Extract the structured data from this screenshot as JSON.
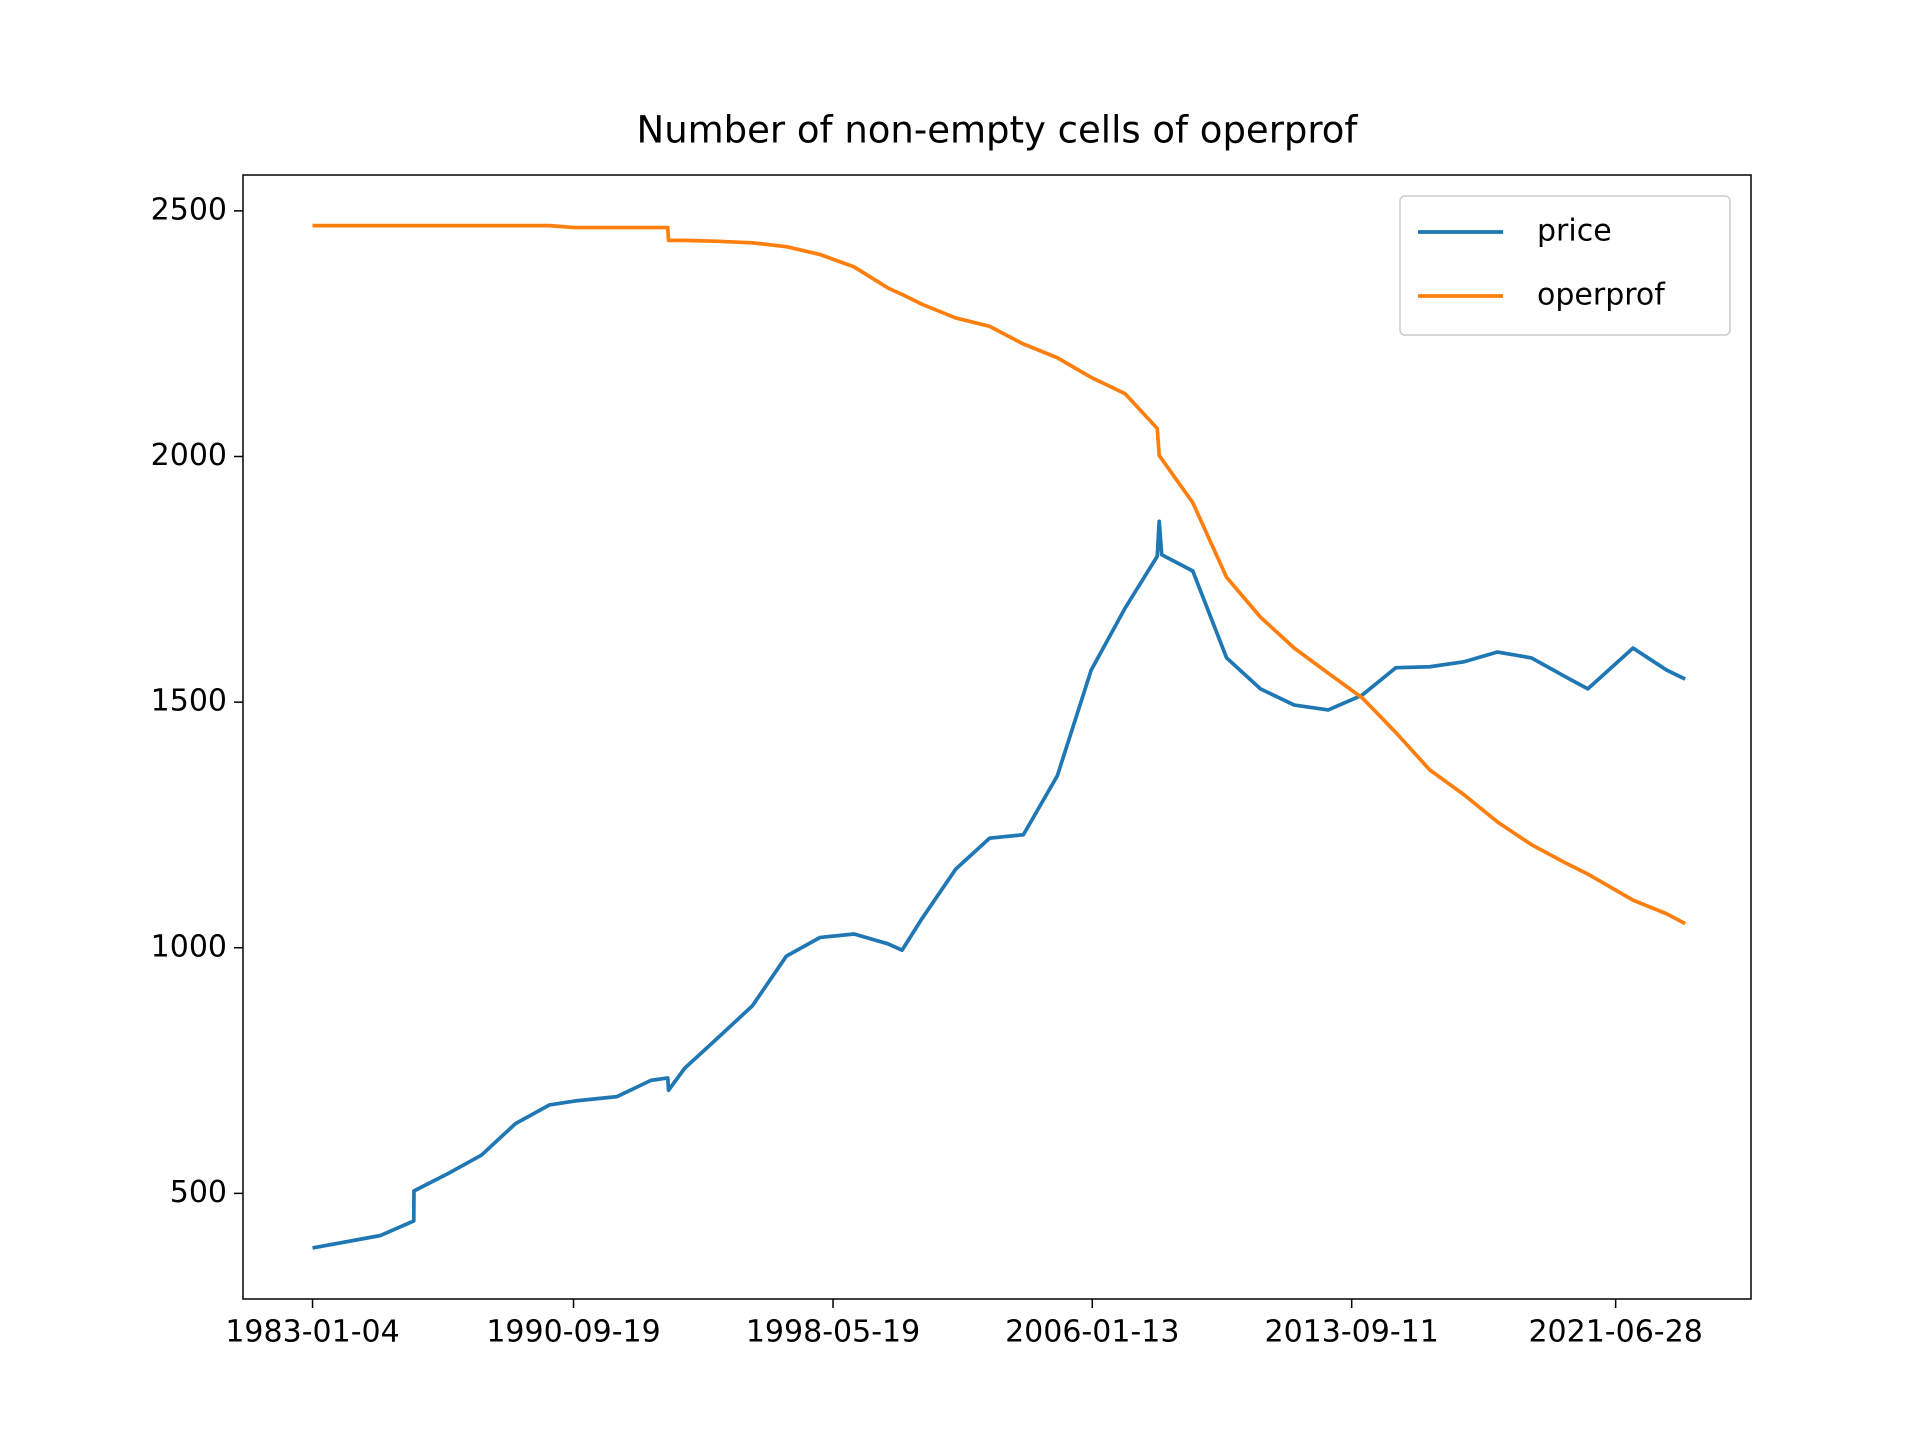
{
  "chart_data": {
    "type": "line",
    "title": "Number of non-empty cells of operprof",
    "x": [
      "1983-01-04",
      "1985-01-01",
      "1985-12-31",
      "1986-01-02",
      "1987-01-01",
      "1988-01-01",
      "1989-01-01",
      "1990-01-01",
      "1990-10-01",
      "1992-01-01",
      "1993-01-01",
      "1993-07-01",
      "1993-07-10",
      "1994-01-01",
      "1995-01-01",
      "1996-01-01",
      "1997-01-01",
      "1998-01-01",
      "1999-01-01",
      "2000-01-01",
      "2000-06-01",
      "2001-01-01",
      "2002-01-01",
      "2003-01-01",
      "2004-01-01",
      "2005-01-01",
      "2006-01-01",
      "2007-01-01",
      "2007-12-15",
      "2008-01-05",
      "2008-02-01",
      "2009-01-01",
      "2010-01-01",
      "2011-01-01",
      "2012-01-01",
      "2013-01-01",
      "2014-01-01",
      "2015-01-01",
      "2016-01-01",
      "2017-01-01",
      "2018-01-01",
      "2019-01-01",
      "2020-01-01",
      "2020-09-01",
      "2022-01-01",
      "2023-01-01",
      "2023-07-18"
    ],
    "series": [
      {
        "name": "price",
        "color": "#1f77b4",
        "values": [
          389,
          414,
          444,
          505,
          540,
          578,
          642,
          680,
          688,
          697,
          730,
          735,
          710,
          755,
          818,
          882,
          983,
          1021,
          1028,
          1008,
          995,
          1059,
          1160,
          1223,
          1230,
          1350,
          1565,
          1691,
          1797,
          1868,
          1800,
          1767,
          1590,
          1527,
          1494,
          1484,
          1514,
          1570,
          1572,
          1582,
          1602,
          1590,
          1552,
          1527,
          1610,
          1565,
          1547
        ]
      },
      {
        "name": "operprof",
        "color": "#ff7f0e",
        "values": [
          2470,
          2470,
          2470,
          2470,
          2470,
          2470,
          2470,
          2470,
          2466,
          2466,
          2466,
          2466,
          2440,
          2440,
          2438,
          2435,
          2427,
          2411,
          2386,
          2343,
          2330,
          2310,
          2282,
          2265,
          2229,
          2201,
          2161,
          2128,
          2057,
          2002,
          1995,
          1906,
          1754,
          1673,
          1610,
          1559,
          1509,
          1438,
          1362,
          1312,
          1256,
          1210,
          1173,
          1150,
          1097,
          1069,
          1049
        ]
      }
    ],
    "xlim": [
      "1980-12-15",
      "2025-06-27"
    ],
    "xticks": [
      "1983-01-04",
      "1990-09-19",
      "1998-05-19",
      "2006-01-13",
      "2013-09-11",
      "2021-06-28"
    ],
    "ylim": [
      285,
      2573
    ],
    "yticks": [
      500,
      1000,
      1500,
      2000,
      2500
    ],
    "legend": "upper right"
  }
}
